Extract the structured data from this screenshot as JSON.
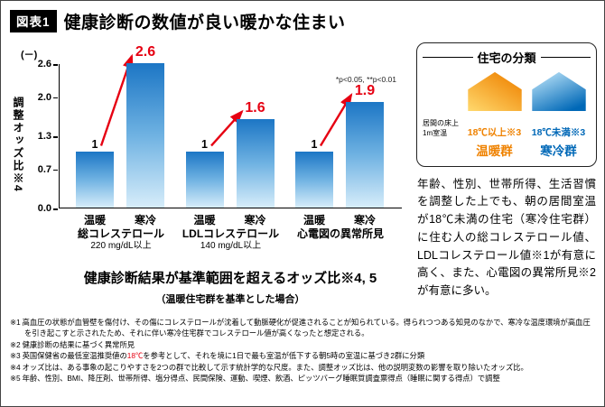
{
  "figure_tag": "図表1",
  "title": "健康診断の数値が良い暖かな住まい",
  "colors": {
    "warm_group": "#ef8200",
    "cold_group": "#0068b7",
    "highlight_red": "#e60012",
    "bar_blue_top": "#1c76c5",
    "bar_blue_bottom": "#d7edfa"
  },
  "chart_data": {
    "type": "bar",
    "title": "健康診断結果が基準範囲を超えるオッズ比※4, 5",
    "subtitle": "（温暖住宅群を基準とした場合）",
    "ylabel": "調整オッズ比※4",
    "y_unit": "(－)",
    "significance_note": "*p<0.05, **p<0.01",
    "y_ticks": [
      "2.6",
      "2.0",
      "1.3",
      "0.7",
      "0.0"
    ],
    "ylim": [
      0,
      2.6
    ],
    "categories": [
      "温暖",
      "寒冷"
    ],
    "legend_position": "none",
    "grid": false,
    "groups": [
      {
        "name": "総コレステロール",
        "threshold": "220 mg/dL以上",
        "warm": 1,
        "cold": 2.6,
        "warm_label": "1",
        "cold_label": "2.6"
      },
      {
        "name": "LDLコレステロール",
        "threshold": "140 mg/dL以上",
        "warm": 1,
        "cold": 1.6,
        "warm_label": "1",
        "cold_label": "1.6"
      },
      {
        "name": "心電図の異常所見",
        "threshold": "",
        "warm": 1,
        "cold": 1.9,
        "warm_label": "1",
        "cold_label": "1.9"
      }
    ]
  },
  "panel": {
    "title": "住宅の分類",
    "room_note_line1": "居間の床上",
    "room_note_line2": "1m室温",
    "warm": {
      "icon": "warm-house-icon",
      "temp": "18℃以上※3",
      "group": "温暖群"
    },
    "cold": {
      "icon": "cold-house-icon",
      "temp": "18℃未満※3",
      "group": "寒冷群"
    }
  },
  "summary": "年齢、性別、世帯所得、生活習慣を調整した上でも、朝の居間室温が18℃未満の住宅（寒冷住宅群）に住む人の総コレステロール値、LDLコレステロール値※1が有意に高く、また、心電図の異常所見※2が有意に多い。",
  "footnotes": [
    {
      "marker": "※1",
      "segments": [
        {
          "text": "高血圧の状態が血管壁を傷付け、その傷にコレステロールが沈着して動脈硬化が促進されることが知られている。得られつつある知見のなかで、寒冷な温度環境が高血圧を引き起こすと示されたため、それに伴い寒冷住宅群でコレステロール値が高くなったと想定される。"
        }
      ]
    },
    {
      "marker": "※2",
      "segments": [
        {
          "text": "健康診断の結果に基づく異常所見"
        }
      ]
    },
    {
      "marker": "※3",
      "segments": [
        {
          "text": "英国保健省の最低室温推奨値の"
        },
        {
          "text": "18℃",
          "red": true
        },
        {
          "text": "を参考として、それを境に1日で最も室温が低下する朝5時の室温に基づき2群に分類"
        }
      ]
    },
    {
      "marker": "※4",
      "segments": [
        {
          "text": "オッズ比は、ある事象の起こりやすさを2つの群で比較して示す統計学的な尺度。また、調整オッズ比は、他の説明変数の影響を取り除いたオッズ比。"
        }
      ]
    },
    {
      "marker": "※5",
      "segments": [
        {
          "text": "年齢、性別、BMI、降圧剤、世帯所得、塩分得点、民間保険、運動、喫煙、飲酒、ピッツバーグ睡眠質調査票得点（睡眠に関する得点）で調整"
        }
      ]
    }
  ]
}
